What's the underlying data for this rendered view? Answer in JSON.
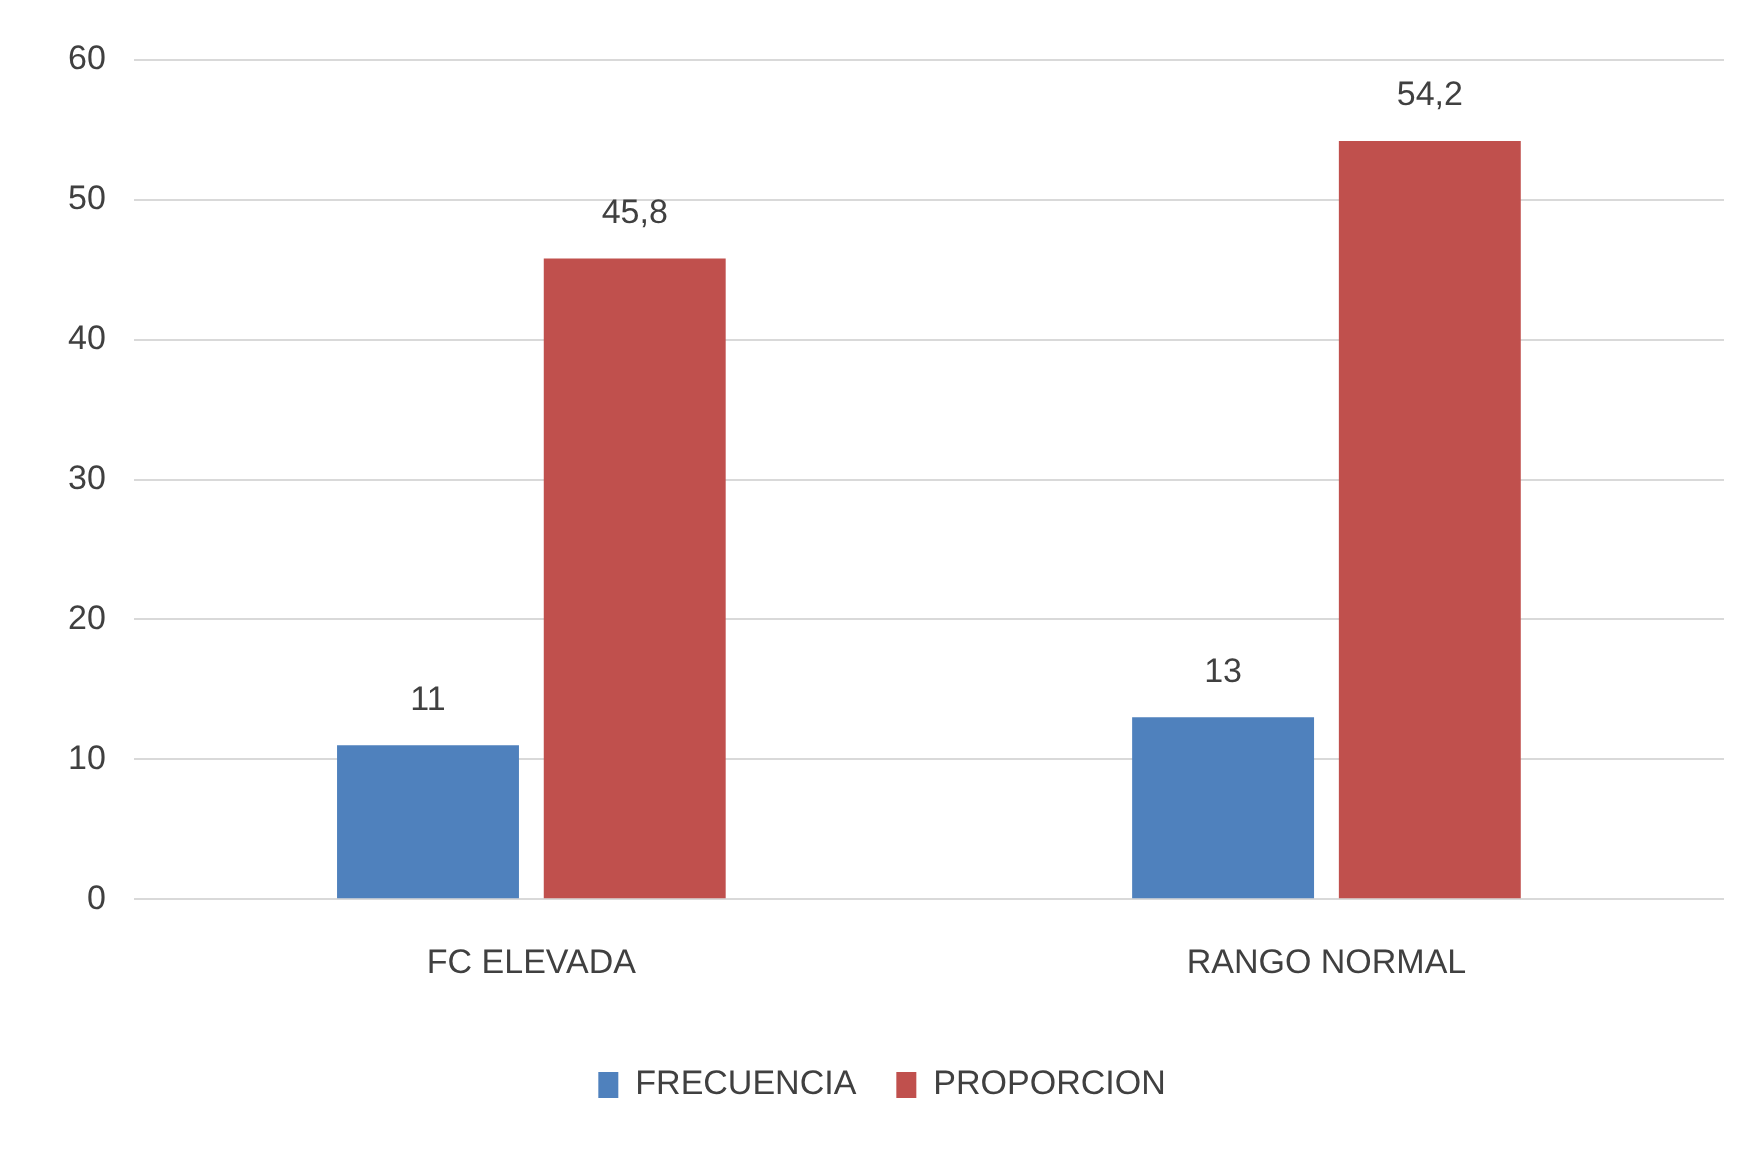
{
  "chart_data": {
    "type": "bar",
    "categories": [
      "FC ELEVADA",
      "RANGO NORMAL"
    ],
    "series": [
      {
        "name": "FRECUENCIA",
        "color": "#4f81bd",
        "values": [
          11,
          13
        ],
        "value_labels": [
          "11",
          "13"
        ]
      },
      {
        "name": "PROPORCION",
        "color": "#c0504d",
        "values": [
          45.8,
          54.2
        ],
        "value_labels": [
          "45,8",
          "54,2"
        ]
      }
    ],
    "ylim": [
      0,
      60
    ],
    "yticks": [
      0,
      10,
      20,
      30,
      40,
      50,
      60
    ],
    "grid": "y",
    "legend": "bottom"
  }
}
